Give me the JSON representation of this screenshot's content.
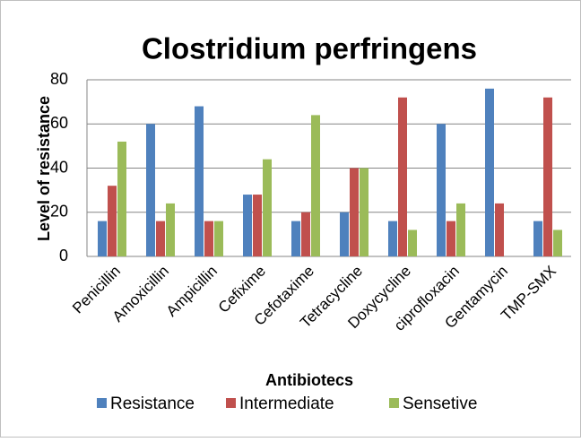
{
  "chart_data": {
    "type": "bar",
    "title": "Clostridium perfringens",
    "y_label": "Level of resistance",
    "x_label": "Antibiotecs",
    "categories": [
      "Penicillin",
      "Amoxicillin",
      "Ampicillin",
      "Cefixime",
      "Cefotaxime",
      "Tetracycline",
      "Doxycycline",
      "ciprofloxacin",
      "Gentamycin",
      "TMP-SMX"
    ],
    "series": [
      {
        "name": "Resistance",
        "color": "#4f81bd",
        "values": [
          16,
          60,
          68,
          28,
          16,
          20,
          16,
          60,
          76,
          16
        ]
      },
      {
        "name": "Intermediate",
        "color": "#c0504d",
        "values": [
          32,
          16,
          16,
          28,
          20,
          40,
          72,
          16,
          24,
          72
        ]
      },
      {
        "name": "Sensetive",
        "color": "#9bbb59",
        "values": [
          52,
          24,
          16,
          44,
          64,
          40,
          12,
          24,
          0,
          12
        ]
      }
    ],
    "ylim": [
      0,
      80
    ],
    "yticks": [
      0,
      20,
      40,
      60,
      80
    ],
    "grid": true,
    "legend": "bottom"
  }
}
